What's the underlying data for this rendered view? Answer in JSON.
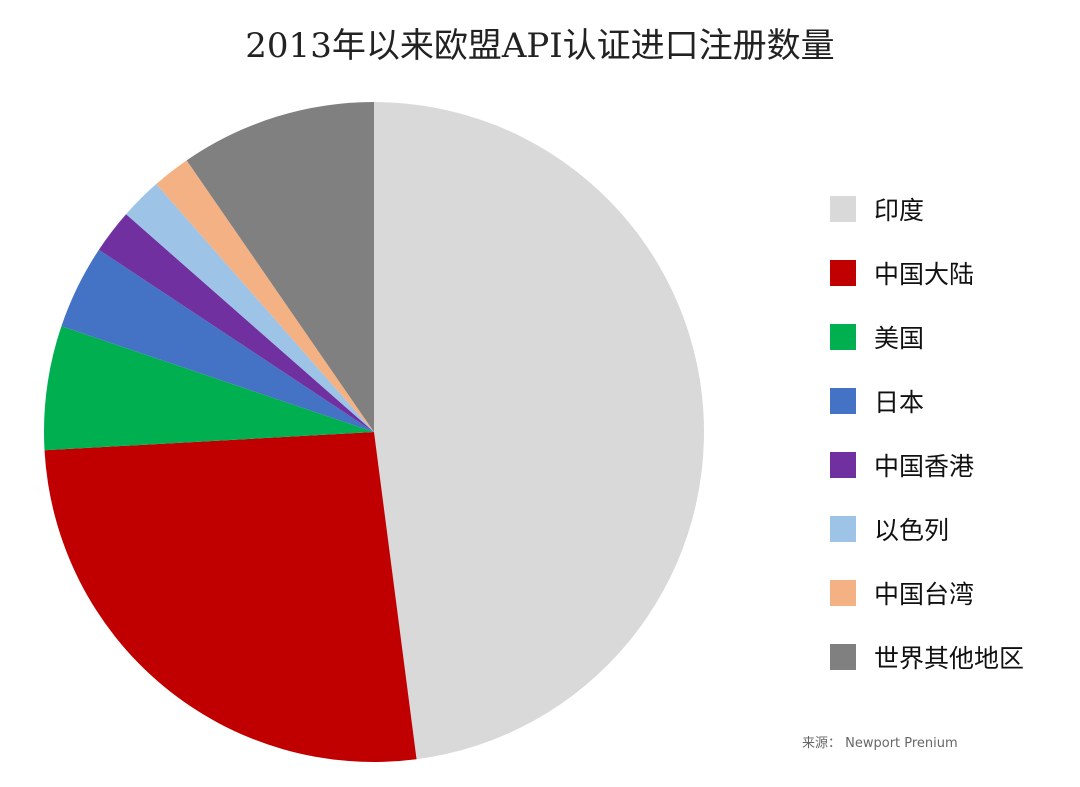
{
  "chart_data": {
    "type": "pie",
    "title": "2013年以来欧盟API认证进口注册数量",
    "series": [
      {
        "name": "印度",
        "value": 48.9,
        "color": "#d9d9d9"
      },
      {
        "name": "中国大陆",
        "value": 26.7,
        "color": "#c00000"
      },
      {
        "name": "美国",
        "value": 6.2,
        "color": "#00b050"
      },
      {
        "name": "日本",
        "value": 4.2,
        "color": "#4472c4"
      },
      {
        "name": "中国香港",
        "value": 2.2,
        "color": "#7030a0"
      },
      {
        "name": "以色列",
        "value": 2.1,
        "color": "#9dc3e6"
      },
      {
        "name": "中国台湾",
        "value": 1.9,
        "color": "#f4b183"
      },
      {
        "name": "世界其他地区",
        "value": 9.8,
        "color": "#808080"
      }
    ],
    "legend_position": "right",
    "start_angle": "12 o'clock",
    "direction": "clockwise"
  },
  "source": "来源： Newport Prenium"
}
